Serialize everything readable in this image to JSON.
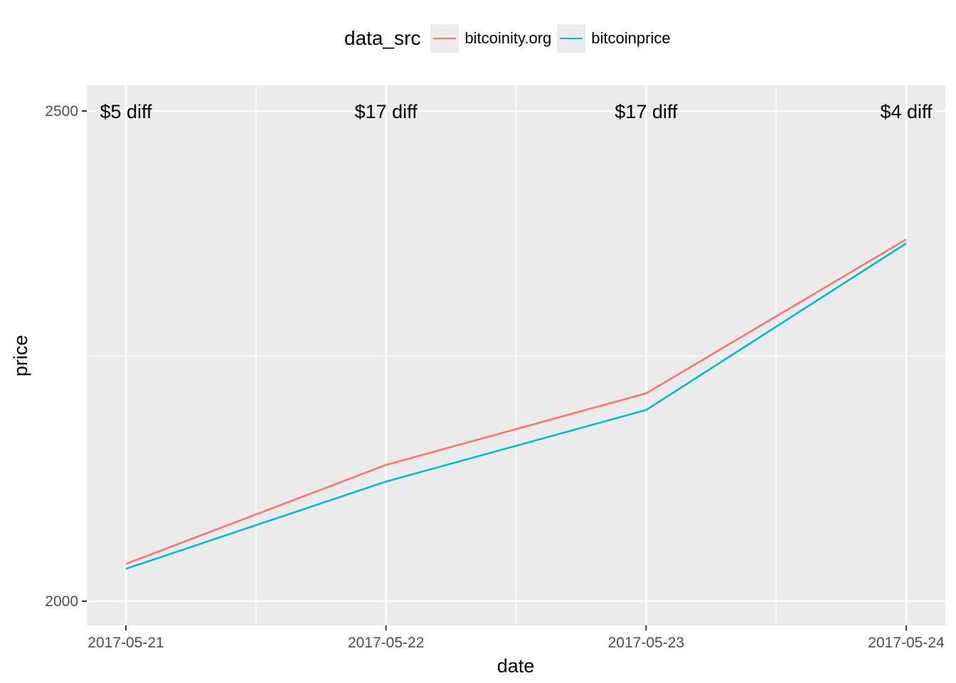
{
  "chart_data": {
    "type": "line",
    "x": [
      "2017-05-21",
      "2017-05-22",
      "2017-05-23",
      "2017-05-24"
    ],
    "series": [
      {
        "name": "bitcoinity.org",
        "color": "#F8766D",
        "values": [
          2038,
          2139,
          2212,
          2369
        ]
      },
      {
        "name": "bitcoinprice",
        "color": "#00BFC4",
        "values": [
          2033,
          2122,
          2195,
          2365
        ]
      }
    ],
    "annotations": [
      "$5 diff",
      "$17 diff",
      "$17 diff",
      "$4 diff"
    ],
    "annotation_y": 2500,
    "xlabel": "date",
    "ylabel": "price",
    "ylim": [
      1975,
      2525
    ],
    "yticks": [
      2000,
      2500
    ],
    "legend_title": "data_src",
    "legend_position": "top",
    "grid": true,
    "panel_background": "#EBEBEB",
    "grid_color": "#FFFFFF"
  }
}
